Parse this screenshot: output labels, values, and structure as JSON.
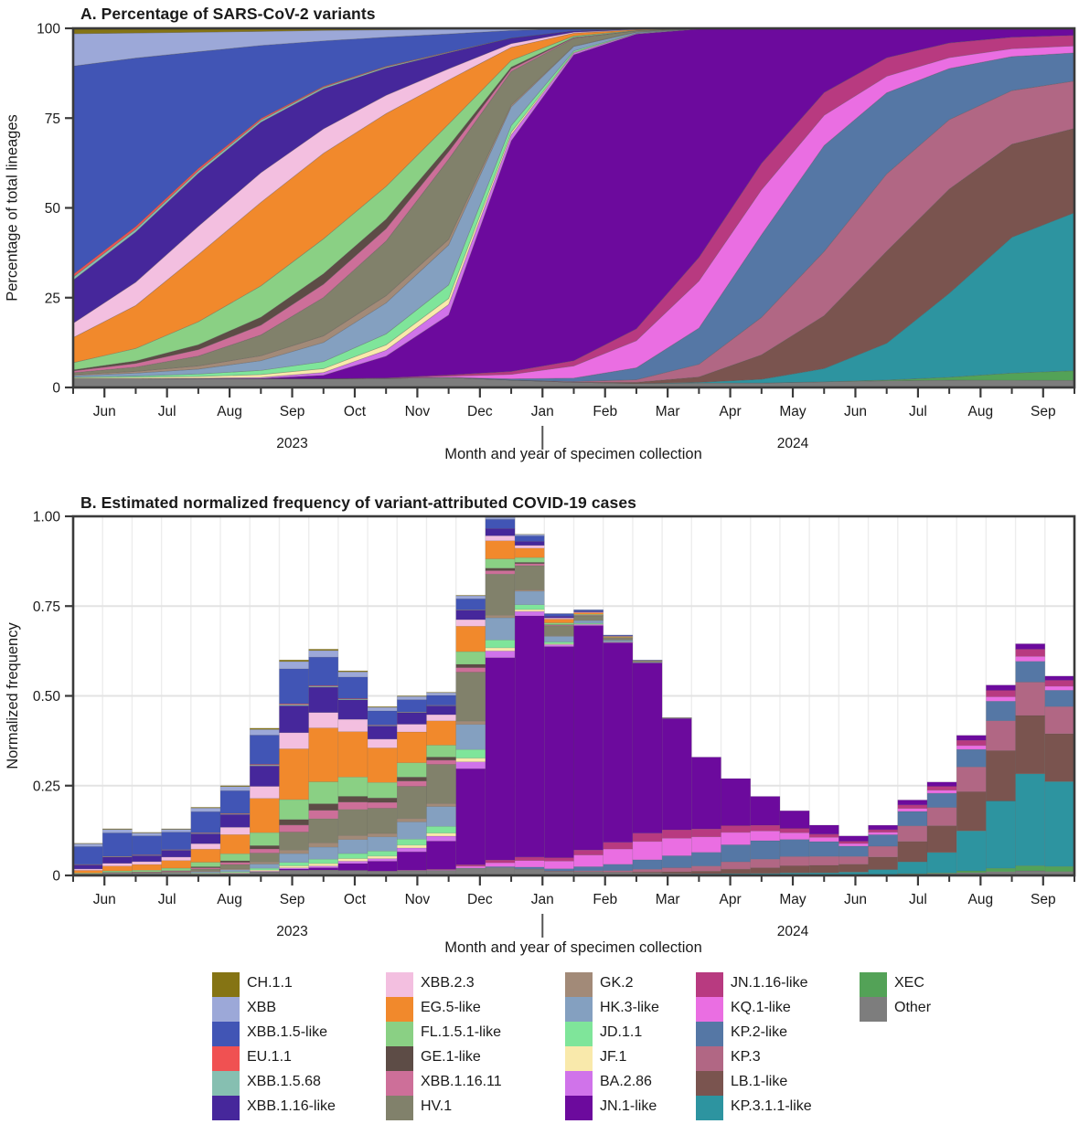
{
  "panel_a": {
    "title": "A. Percentage of SARS-CoV-2 variants",
    "ylabel": "Percentage of total lineages",
    "xlabel": "Month and year of specimen collection",
    "yticks": [
      0,
      25,
      50,
      75,
      100
    ]
  },
  "panel_b": {
    "title": "B. Estimated normalized frequency of variant-attributed COVID-19 cases",
    "ylabel": "Normalized frequency",
    "xlabel": "Month and year of specimen collection",
    "yticks": [
      0,
      0.25,
      0.5,
      0.75,
      1.0
    ]
  },
  "axis": {
    "months": [
      "Jun",
      "Jul",
      "Aug",
      "Sep",
      "Oct",
      "Nov",
      "Dec",
      "Jan",
      "Feb",
      "Mar",
      "Apr",
      "May",
      "Jun",
      "Jul",
      "Aug",
      "Sep"
    ],
    "years": [
      {
        "label": "2023",
        "center_month": 3.5
      },
      {
        "label": "2024",
        "center_month": 11.5
      }
    ],
    "divider_month": 7.5
  },
  "chart_data": [
    {
      "type": "area",
      "stacked": true,
      "panel": "A",
      "title": "A. Percentage of SARS-CoV-2 variants",
      "xlabel": "Month and year of specimen collection",
      "ylabel": "Percentage of total lineages",
      "ylim": [
        0,
        100
      ],
      "grid": false,
      "legend_position": "bottom",
      "x_knots_months_since_jun2023": [
        0,
        1,
        2,
        3,
        4,
        5,
        6,
        7,
        8,
        9,
        10,
        11,
        12,
        13,
        14,
        15,
        16
      ],
      "series_note": "percent of total lineages at each month start, Jun 2023 - Oct 2024; stack order top-to-bottom as listed",
      "series": [
        {
          "name": "CH.1.1",
          "color": "#857414",
          "values": [
            1.5,
            1.3,
            1.1,
            0.9,
            0.6,
            0.4,
            0.2,
            0.1,
            0,
            0,
            0,
            0,
            0,
            0,
            0,
            0,
            0
          ]
        },
        {
          "name": "XBB",
          "color": "#9ca8d8",
          "values": [
            9,
            7,
            5.5,
            4,
            3,
            2,
            1.2,
            0.5,
            0.1,
            0,
            0,
            0,
            0,
            0,
            0,
            0,
            0
          ]
        },
        {
          "name": "XBB.1.5-like",
          "color": "#4155b5",
          "values": [
            58,
            47,
            33,
            21,
            13,
            8,
            4.5,
            2,
            0.6,
            0.2,
            0,
            0,
            0,
            0,
            0,
            0,
            0
          ]
        },
        {
          "name": "EU.1.1",
          "color": "#f05152",
          "values": [
            0.8,
            0.8,
            0.7,
            0.5,
            0.3,
            0.2,
            0.1,
            0,
            0,
            0,
            0,
            0,
            0,
            0,
            0,
            0,
            0
          ]
        },
        {
          "name": "XBB.1.5.68",
          "color": "#86bfb1",
          "values": [
            0.8,
            0.8,
            0.7,
            0.6,
            0.4,
            0.3,
            0.1,
            0,
            0,
            0,
            0,
            0,
            0,
            0,
            0,
            0,
            0
          ]
        },
        {
          "name": "XBB.1.16-like",
          "color": "#46279b",
          "values": [
            12,
            14,
            15,
            14.5,
            11.5,
            7.5,
            4,
            1.5,
            0.4,
            0.1,
            0,
            0,
            0,
            0,
            0,
            0,
            0
          ]
        },
        {
          "name": "XBB.2.3",
          "color": "#f3bfe0",
          "values": [
            4,
            6.5,
            8,
            8.5,
            7,
            5,
            2.8,
            1,
            0.3,
            0.1,
            0,
            0,
            0,
            0,
            0,
            0,
            0
          ]
        },
        {
          "name": "EG.5-like",
          "color": "#f1892c",
          "values": [
            7,
            12,
            19,
            24,
            24.5,
            20,
            11,
            3.5,
            0.8,
            0.2,
            0,
            0,
            0,
            0,
            0,
            0,
            0
          ]
        },
        {
          "name": "FL.1.5.1-like",
          "color": "#8ad084",
          "values": [
            2,
            3.5,
            6.5,
            9,
            10,
            9,
            5.5,
            1.8,
            0.4,
            0.1,
            0,
            0,
            0,
            0,
            0,
            0,
            0
          ]
        },
        {
          "name": "GE.1-like",
          "color": "#5d4c46",
          "values": [
            0.3,
            0.7,
            1.4,
            2.3,
            3,
            2.6,
            1.4,
            0.5,
            0.1,
            0,
            0,
            0,
            0,
            0,
            0,
            0,
            0
          ]
        },
        {
          "name": "XBB.1.16.11",
          "color": "#cd6f99",
          "values": [
            0.5,
            1,
            1.8,
            2.8,
            3.8,
            3.4,
            1.9,
            0.7,
            0.2,
            0,
            0,
            0,
            0,
            0,
            0,
            0,
            0
          ]
        },
        {
          "name": "HV.1",
          "color": "#81816b",
          "values": [
            0.5,
            1.2,
            2.8,
            6,
            11,
            15,
            20,
            9,
            2.2,
            0.4,
            0.1,
            0,
            0,
            0,
            0,
            0,
            0
          ]
        },
        {
          "name": "GK.2",
          "color": "#a28a78",
          "values": [
            0.3,
            0.5,
            0.9,
            1.4,
            1.9,
            2,
            1.4,
            0.5,
            0.1,
            0,
            0,
            0,
            0,
            0,
            0,
            0,
            0
          ]
        },
        {
          "name": "HK.3-like",
          "color": "#84a0c0",
          "values": [
            0.4,
            0.8,
            1.4,
            2.8,
            5.5,
            8.5,
            10,
            5,
            1.3,
            0.3,
            0,
            0,
            0,
            0,
            0,
            0,
            0
          ]
        },
        {
          "name": "JD.1.1",
          "color": "#7fe59a",
          "values": [
            0.2,
            0.4,
            0.7,
            1.2,
            2,
            3,
            3.4,
            1.8,
            0.4,
            0.1,
            0,
            0,
            0,
            0,
            0,
            0,
            0
          ]
        },
        {
          "name": "JF.1",
          "color": "#f9e9ab",
          "values": [
            0.2,
            0.3,
            0.5,
            0.8,
            1.1,
            1.5,
            1.5,
            0.7,
            0.2,
            0,
            0,
            0,
            0,
            0,
            0,
            0,
            0
          ]
        },
        {
          "name": "BA.2.86",
          "color": "#d073ea",
          "values": [
            0,
            0,
            0.1,
            0.3,
            0.8,
            1.6,
            2.6,
            1.6,
            0.5,
            0.2,
            0.1,
            0,
            0,
            0,
            0,
            0,
            0
          ]
        },
        {
          "name": "JN.1-like",
          "color": "#6c0a9d",
          "values": [
            0,
            0,
            0,
            0.1,
            1,
            6,
            15,
            62,
            88,
            87,
            63,
            36,
            17,
            8,
            4,
            2.5,
            2
          ]
        },
        {
          "name": "JN.1.16-like",
          "color": "#b83a80",
          "values": [
            0,
            0,
            0,
            0,
            0,
            0.1,
            0.3,
            0.8,
            1.5,
            3.5,
            6.5,
            7,
            6,
            5,
            4,
            3.2,
            3
          ]
        },
        {
          "name": "KQ.1-like",
          "color": "#ea6ee2",
          "values": [
            0,
            0,
            0,
            0,
            0,
            0,
            0.3,
            1.2,
            3.5,
            8,
            13,
            12,
            8,
            4.5,
            3,
            2.2,
            2
          ]
        },
        {
          "name": "KP.2-like",
          "color": "#5577a5",
          "values": [
            0,
            0,
            0,
            0,
            0,
            0,
            0,
            0.3,
            1,
            3.5,
            10,
            22,
            28,
            22,
            14,
            9.5,
            8
          ]
        },
        {
          "name": "KP.3",
          "color": "#b16784",
          "values": [
            0,
            0,
            0,
            0,
            0,
            0,
            0,
            0,
            0.2,
            0.8,
            3.5,
            10,
            17,
            21,
            19,
            15,
            13.5
          ]
        },
        {
          "name": "LB.1-like",
          "color": "#7a544f",
          "values": [
            0,
            0,
            0,
            0,
            0,
            0,
            0,
            0,
            0,
            0.3,
            1.5,
            6.5,
            14,
            25,
            28.5,
            26,
            24
          ]
        },
        {
          "name": "KP.3.1.1-like",
          "color": "#2d94a0",
          "values": [
            0,
            0,
            0,
            0,
            0,
            0,
            0,
            0,
            0,
            0,
            0.2,
            1,
            3.5,
            10,
            23,
            38,
            45
          ]
        },
        {
          "name": "XEC",
          "color": "#53a257",
          "values": [
            0,
            0,
            0,
            0,
            0,
            0,
            0,
            0,
            0,
            0,
            0,
            0,
            0,
            0.2,
            0.8,
            2,
            2.8
          ]
        },
        {
          "name": "Other",
          "color": "#7d7d7d",
          "values": [
            2.5,
            2.5,
            2.5,
            2.5,
            2.5,
            2.5,
            2.5,
            2,
            1.5,
            1.2,
            1.2,
            1.2,
            1.5,
            1.8,
            2,
            2,
            2
          ]
        }
      ]
    },
    {
      "type": "bar",
      "stacked": true,
      "panel": "B",
      "title": "B. Estimated normalized frequency of variant-attributed COVID-19 cases",
      "xlabel": "Month and year of specimen collection",
      "ylabel": "Normalized frequency",
      "ylim": [
        0,
        1
      ],
      "grid": true,
      "bin": "half-month bars, Jun 2023 - Sep 2024",
      "totals": [
        0.09,
        0.13,
        0.12,
        0.13,
        0.19,
        0.25,
        0.41,
        0.6,
        0.63,
        0.57,
        0.47,
        0.5,
        0.51,
        0.78,
        1.0,
        0.95,
        0.73,
        0.74,
        0.67,
        0.6,
        0.44,
        0.33,
        0.27,
        0.22,
        0.18,
        0.14,
        0.11,
        0.14,
        0.21,
        0.26,
        0.39,
        0.53,
        0.645,
        0.555
      ],
      "composition": "each bar is split among variants using the panel A series shares interpolated at the bar's date"
    }
  ],
  "legend": {
    "columns": [
      [
        {
          "label": "CH.1.1",
          "color": "#857414"
        },
        {
          "label": "XBB",
          "color": "#9ca8d8"
        },
        {
          "label": "XBB.1.5-like",
          "color": "#4155b5"
        },
        {
          "label": "EU.1.1",
          "color": "#f05152"
        },
        {
          "label": "XBB.1.5.68",
          "color": "#86bfb1"
        },
        {
          "label": "XBB.1.16-like",
          "color": "#46279b"
        }
      ],
      [
        {
          "label": "XBB.2.3",
          "color": "#f3bfe0"
        },
        {
          "label": "EG.5-like",
          "color": "#f1892c"
        },
        {
          "label": "FL.1.5.1-like",
          "color": "#8ad084"
        },
        {
          "label": "GE.1-like",
          "color": "#5d4c46"
        },
        {
          "label": "XBB.1.16.11",
          "color": "#cd6f99"
        },
        {
          "label": "HV.1",
          "color": "#81816b"
        }
      ],
      [
        {
          "label": "GK.2",
          "color": "#a28a78"
        },
        {
          "label": "HK.3-like",
          "color": "#84a0c0"
        },
        {
          "label": "JD.1.1",
          "color": "#7fe59a"
        },
        {
          "label": "JF.1",
          "color": "#f9e9ab"
        },
        {
          "label": "BA.2.86",
          "color": "#d073ea"
        },
        {
          "label": "JN.1-like",
          "color": "#6c0a9d"
        }
      ],
      [
        {
          "label": "JN.1.16-like",
          "color": "#b83a80"
        },
        {
          "label": "KQ.1-like",
          "color": "#ea6ee2"
        },
        {
          "label": "KP.2-like",
          "color": "#5577a5"
        },
        {
          "label": "KP.3",
          "color": "#b16784"
        },
        {
          "label": "LB.1-like",
          "color": "#7a544f"
        },
        {
          "label": "KP.3.1.1-like",
          "color": "#2d94a0"
        }
      ],
      [
        {
          "label": "XEC",
          "color": "#53a257"
        },
        {
          "label": "Other",
          "color": "#7d7d7d"
        }
      ]
    ]
  },
  "style": {
    "axis_color": "#3a3a3a",
    "grid_major_color": "#e3e3e3",
    "grid_minor_color": "#ededed",
    "text_color": "#1a1a1a"
  }
}
